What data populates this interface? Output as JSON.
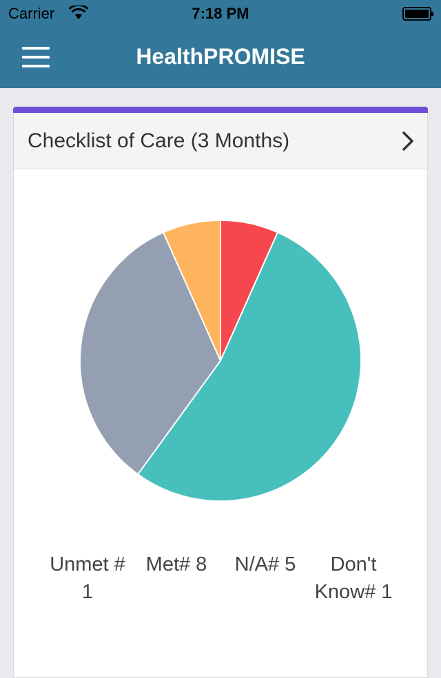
{
  "status_bar": {
    "carrier": "Carrier",
    "time": "7:18 PM",
    "icons": [
      "wifi-icon",
      "battery-icon"
    ]
  },
  "nav": {
    "title": "HealthPROMISE",
    "menu_icon": "menu-icon"
  },
  "colors": {
    "nav_bar": "#33789b",
    "card_accent": "#6e4ed8",
    "unmet": "#f5474d",
    "met": "#47bfbc",
    "na": "#94a0b2",
    "dont_know": "#fdb45c"
  },
  "card": {
    "title": "Checklist of Care (3 Months)",
    "chevron_icon": "chevron-right-icon"
  },
  "chart_data": {
    "type": "pie",
    "categories": [
      "Unmet",
      "Met",
      "N/A",
      "Don't Know"
    ],
    "values": [
      1,
      8,
      5,
      1
    ],
    "colors": [
      "#f5474d",
      "#47bfbc",
      "#94a0b2",
      "#fdb45c"
    ],
    "start": "top",
    "direction": "clockwise"
  },
  "legend": [
    {
      "text": "Unmet # 1"
    },
    {
      "text": "Met# 8"
    },
    {
      "text": "N/A# 5"
    },
    {
      "text": "Don't Know# 1"
    }
  ]
}
